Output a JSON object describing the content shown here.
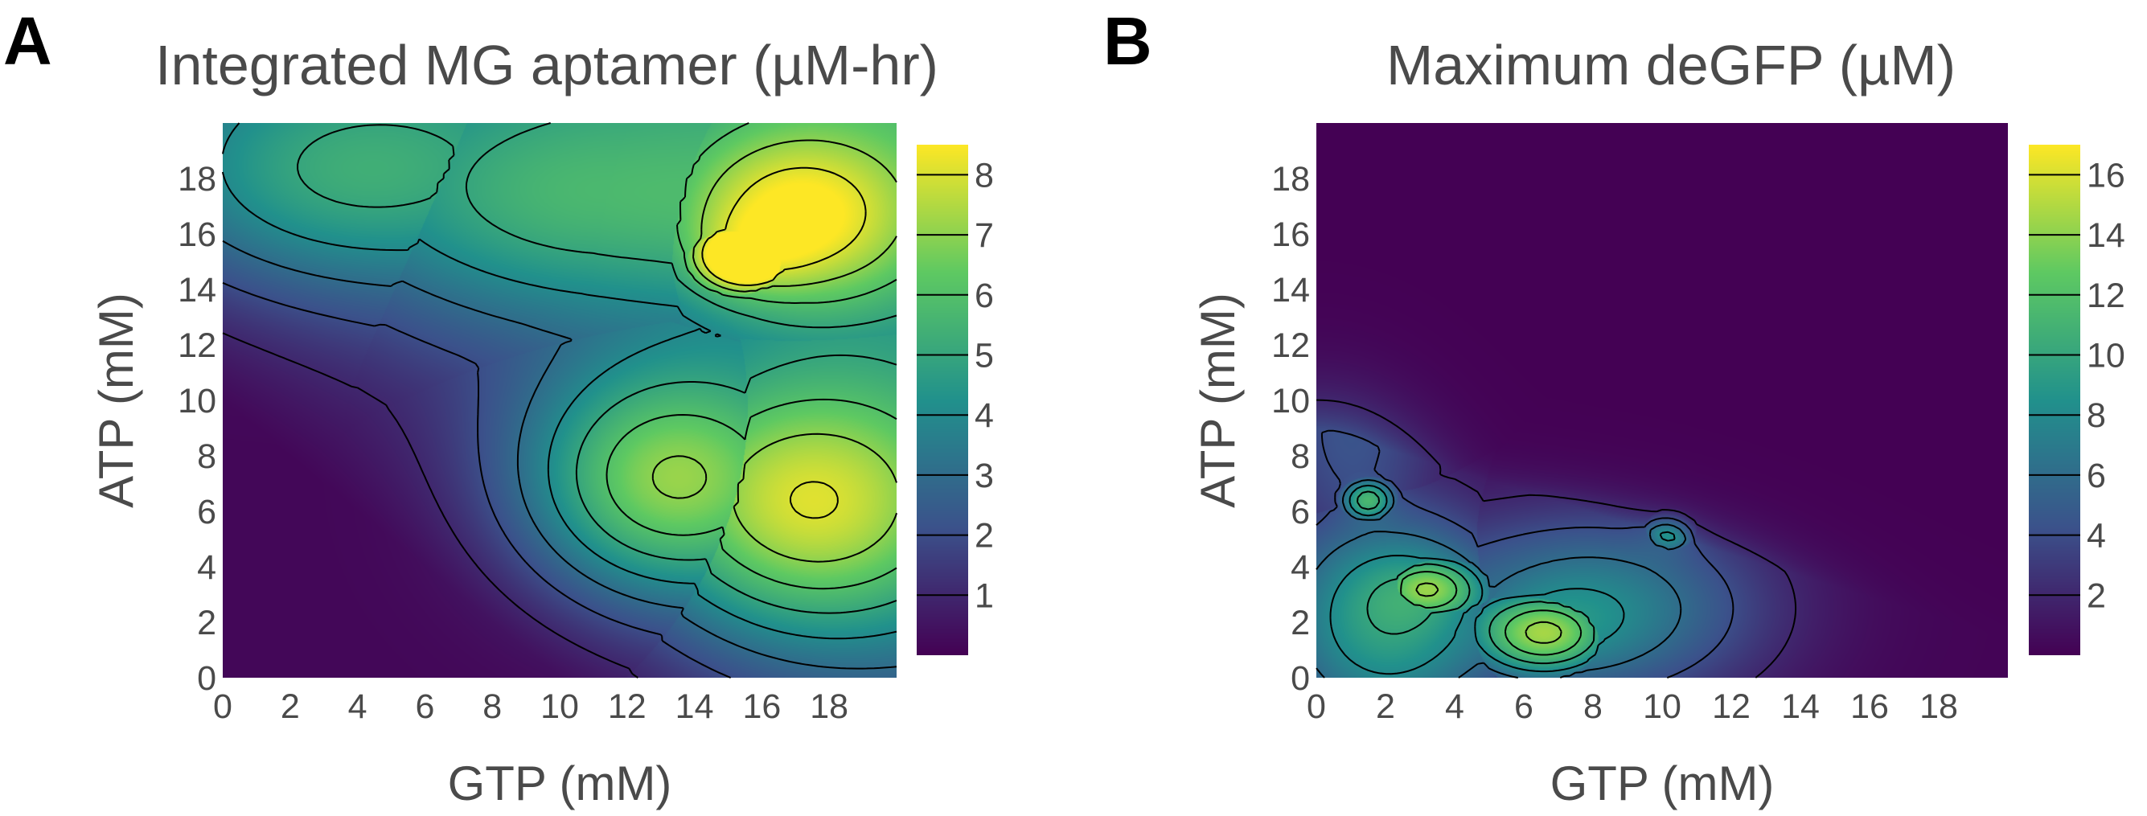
{
  "chart_data": [
    {
      "type": "heatmap",
      "panel_label": "A",
      "title": "Integrated MG aptamer (µM-hr)",
      "xlabel": "GTP (mM)",
      "ylabel": "ATP (mM)",
      "xlim": [
        0,
        20
      ],
      "ylim": [
        0,
        20
      ],
      "xticks": [
        0,
        2,
        4,
        6,
        8,
        10,
        12,
        14,
        16,
        18
      ],
      "yticks": [
        0,
        2,
        4,
        6,
        8,
        10,
        12,
        14,
        16,
        18
      ],
      "colorscale": "viridis",
      "colorbar_range": [
        0,
        8.5
      ],
      "colorbar_ticks": [
        1,
        2,
        3,
        4,
        5,
        6,
        7,
        8
      ],
      "contour_levels": [
        1,
        2,
        3,
        4,
        5,
        6,
        7,
        8
      ],
      "colors": {
        "low": "#440154",
        "mid": "#21918c",
        "high": "#fde725"
      },
      "peaks": [
        {
          "x": 15.5,
          "y": 15.2,
          "value": 8.3,
          "sx": 1.2,
          "sy": 1.0
        },
        {
          "x": 17.5,
          "y": 6.0,
          "value": 6.6,
          "sx": 3.5,
          "sy": 3.5
        },
        {
          "x": 13.0,
          "y": 7.0,
          "value": 6.0,
          "sx": 3.0,
          "sy": 3.0
        },
        {
          "x": 17.0,
          "y": 16.5,
          "value": 5.8,
          "sx": 2.8,
          "sy": 2.5
        },
        {
          "x": 3.0,
          "y": 18.0,
          "value": 3.8,
          "sx": 4.5,
          "sy": 3.0
        },
        {
          "x": 10.0,
          "y": 17.0,
          "value": 3.2,
          "sx": 5.0,
          "sy": 3.0
        }
      ]
    },
    {
      "type": "heatmap",
      "panel_label": "B",
      "title": "Maximum deGFP (µM)",
      "xlabel": "GTP (mM)",
      "ylabel": "ATP (mM)",
      "xlim": [
        0,
        20
      ],
      "ylim": [
        0,
        20
      ],
      "xticks": [
        0,
        2,
        4,
        6,
        8,
        10,
        12,
        14,
        16,
        18
      ],
      "yticks": [
        0,
        2,
        4,
        6,
        8,
        10,
        12,
        14,
        16,
        18
      ],
      "colorscale": "viridis",
      "colorbar_range": [
        0,
        17
      ],
      "colorbar_ticks": [
        2,
        4,
        6,
        8,
        10,
        12,
        14,
        16
      ],
      "contour_levels": [
        2,
        4,
        6,
        8,
        10,
        12,
        14,
        16
      ],
      "colors": {
        "low": "#440154",
        "mid": "#21918c",
        "high": "#fde725"
      },
      "peaks": [
        {
          "x": 6.6,
          "y": 1.6,
          "value": 15.5,
          "sx": 1.6,
          "sy": 1.2
        },
        {
          "x": 3.2,
          "y": 3.2,
          "value": 14.5,
          "sx": 1.3,
          "sy": 1.0
        },
        {
          "x": 1.5,
          "y": 6.4,
          "value": 12.0,
          "sx": 0.6,
          "sy": 0.6
        },
        {
          "x": 10.2,
          "y": 5.2,
          "value": 9.5,
          "sx": 0.6,
          "sy": 0.6
        },
        {
          "x": 2.0,
          "y": 2.0,
          "value": 11.0,
          "sx": 2.5,
          "sy": 3.0
        },
        {
          "x": 8.0,
          "y": 2.5,
          "value": 9.0,
          "sx": 3.5,
          "sy": 2.5
        },
        {
          "x": 1.0,
          "y": 9.0,
          "value": 5.0,
          "sx": 2.0,
          "sy": 3.5
        }
      ]
    }
  ]
}
